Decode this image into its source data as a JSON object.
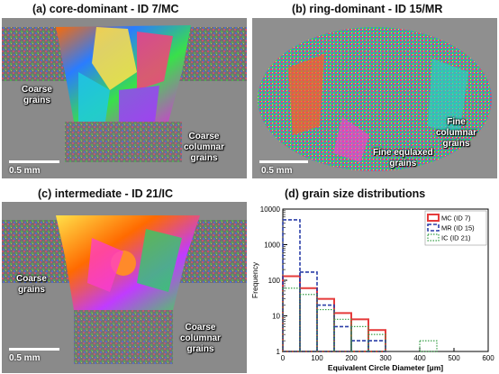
{
  "panels": {
    "a": {
      "title": "(a) core-dominant - ID 7/MC",
      "labels": [
        "Coarse",
        "grains",
        "Coarse",
        "columnar",
        "grains"
      ],
      "scale": "0.5 mm"
    },
    "b": {
      "title": "(b) ring-dominant - ID 15/MR",
      "labels": [
        "Fine",
        "columnar",
        "grains",
        "Fine equlaxed",
        "grains"
      ],
      "scale": "0.5 mm"
    },
    "c": {
      "title": "(c) intermediate - ID 21/IC",
      "labels": [
        "Coarse",
        "grains",
        "Coarse",
        "columnar",
        "grains"
      ],
      "scale": "0.5 mm"
    },
    "d": {
      "title": "(d) grain size distributions"
    }
  },
  "colors": {
    "mc": "#e53b3b",
    "mr": "#2b3fa8",
    "ic": "#3aa04a"
  },
  "chart_data": {
    "type": "bar",
    "title": "(d) grain size distributions",
    "xlabel": "Equivalent Circle Diameter [µm]",
    "ylabel": "Frequency",
    "xlim": [
      0,
      600
    ],
    "ylim": [
      1,
      10000
    ],
    "yscale": "log",
    "xticks": [
      "0",
      "100",
      "200",
      "300",
      "400",
      "500",
      "600"
    ],
    "yticks": [
      "1",
      "10",
      "100",
      "1000",
      "10000"
    ],
    "bin_edges": [
      0,
      50,
      100,
      150,
      200,
      250,
      300,
      350,
      400,
      450
    ],
    "legend_position": "top-right",
    "series": [
      {
        "name": "MC (ID 7)",
        "values": [
          130,
          60,
          30,
          12,
          8,
          4,
          0,
          0,
          0
        ]
      },
      {
        "name": "MR (ID 15)",
        "values": [
          5000,
          170,
          20,
          5,
          2,
          2,
          0,
          0,
          0
        ]
      },
      {
        "name": "IC (ID 21)",
        "values": [
          60,
          40,
          15,
          8,
          5,
          3,
          0,
          0,
          2
        ]
      }
    ]
  }
}
